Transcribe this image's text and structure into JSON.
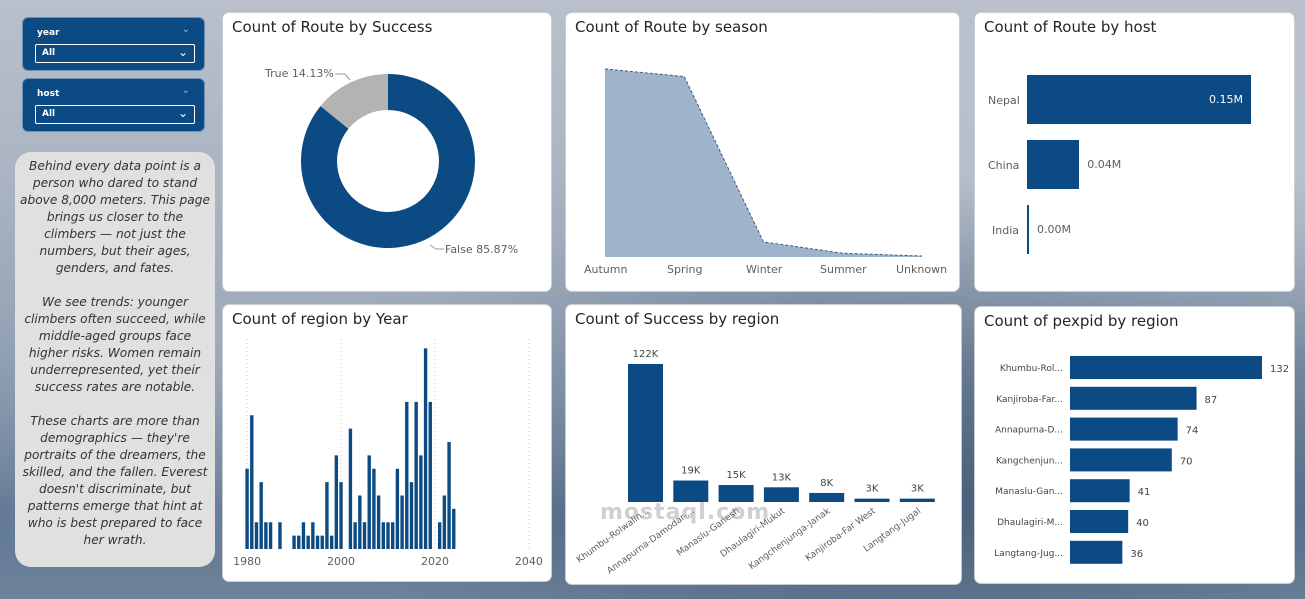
{
  "slicers": [
    {
      "title": "year",
      "value": "All"
    },
    {
      "title": "host",
      "value": "All"
    }
  ],
  "icons": {
    "slicer_chevron": "chevron-down-icon",
    "dropdown_chevron": "chevron-down-icon"
  },
  "story": {
    "paragraphs": [
      "Behind every data point is a person who dared to stand above 8,000 meters. This page brings us closer to the climbers — not just the numbers, but their ages, genders, and fates.",
      "We see trends: younger climbers often succeed, while middle-aged groups face higher risks. Women remain underrepresented, yet their success rates are notable.",
      "These charts are more than demographics — they're portraits of the dreamers, the skilled, and the fallen. Everest doesn't discriminate, but patterns emerge that hint at who is best prepared to face her wrath."
    ]
  },
  "colors": {
    "primary": "#0c4a84",
    "grey": "#b3b3b3",
    "area": "#9fb4cb"
  },
  "watermark": "mostaql.com",
  "chart_data": [
    {
      "type": "pie",
      "title": "Count of Route by Success",
      "donut": true,
      "slices": [
        {
          "label": "True 14.13%",
          "name": "True",
          "percent": 14.13
        },
        {
          "label": "False 85.87%",
          "name": "False",
          "percent": 85.87
        }
      ]
    },
    {
      "type": "area",
      "title": "Count of Route by season",
      "categories": [
        "Autumn",
        "Spring",
        "Winter",
        "Summer",
        "Unknown"
      ],
      "values": [
        100,
        96,
        8,
        2,
        0.5
      ],
      "ylim": [
        0,
        100
      ]
    },
    {
      "type": "bar",
      "orientation": "horizontal",
      "title": "Count of Route by host",
      "categories": [
        "Nepal",
        "China",
        "India"
      ],
      "values": [
        0.15,
        0.035,
        0.001
      ],
      "labels": [
        "0.15M",
        "0.04M",
        "0.00M"
      ],
      "xlim": [
        0,
        0.15
      ]
    },
    {
      "type": "bar",
      "title": "Count of region by Year",
      "xticks": [
        "1980",
        "2000",
        "2020",
        "2040"
      ],
      "x": [
        1980,
        1981,
        1982,
        1983,
        1984,
        1985,
        1986,
        1987,
        1988,
        1989,
        1990,
        1991,
        1992,
        1993,
        1994,
        1995,
        1996,
        1997,
        1998,
        1999,
        2000,
        2001,
        2002,
        2003,
        2004,
        2005,
        2006,
        2007,
        2008,
        2009,
        2010,
        2011,
        2012,
        2013,
        2014,
        2015,
        2016,
        2017,
        2018,
        2019,
        2020,
        2021,
        2022,
        2023,
        2024
      ],
      "values": [
        30,
        50,
        10,
        25,
        10,
        10,
        0,
        10,
        0,
        0,
        5,
        5,
        10,
        5,
        10,
        5,
        5,
        25,
        5,
        35,
        25,
        0,
        45,
        10,
        20,
        10,
        35,
        30,
        20,
        10,
        10,
        10,
        30,
        20,
        55,
        25,
        55,
        35,
        75,
        55,
        0,
        10,
        20,
        40,
        15
      ],
      "xlim": [
        1977,
        2043
      ],
      "ylim": [
        0,
        80
      ]
    },
    {
      "type": "bar",
      "title": "Count of Success by region",
      "categories": [
        "Khumbu-Rolwalin...",
        "Annapurna-Damodar-...",
        "Manaslu-Ganesh",
        "Dhaulagiri-Mukut",
        "Kangchenjunga-Janak",
        "Kanjiroba-Far West",
        "Langtang-Jugal"
      ],
      "values": [
        122,
        19,
        15,
        13,
        8,
        3,
        3
      ],
      "labels": [
        "122K",
        "19K",
        "15K",
        "13K",
        "8K",
        "3K",
        "3K"
      ],
      "ylim": [
        0,
        122
      ]
    },
    {
      "type": "bar",
      "orientation": "horizontal",
      "title": "Count of pexpid by region",
      "categories": [
        "Khumbu-Rol...",
        "Kanjiroba-Far...",
        "Annapurna-D...",
        "Kangchenjun...",
        "Manaslu-Gan...",
        "Dhaulagiri-M...",
        "Langtang-Jug..."
      ],
      "values": [
        132,
        87,
        74,
        70,
        41,
        40,
        36
      ],
      "labels": [
        "132",
        "87",
        "74",
        "70",
        "41",
        "40",
        "36"
      ],
      "xlim": [
        0,
        132
      ]
    }
  ]
}
